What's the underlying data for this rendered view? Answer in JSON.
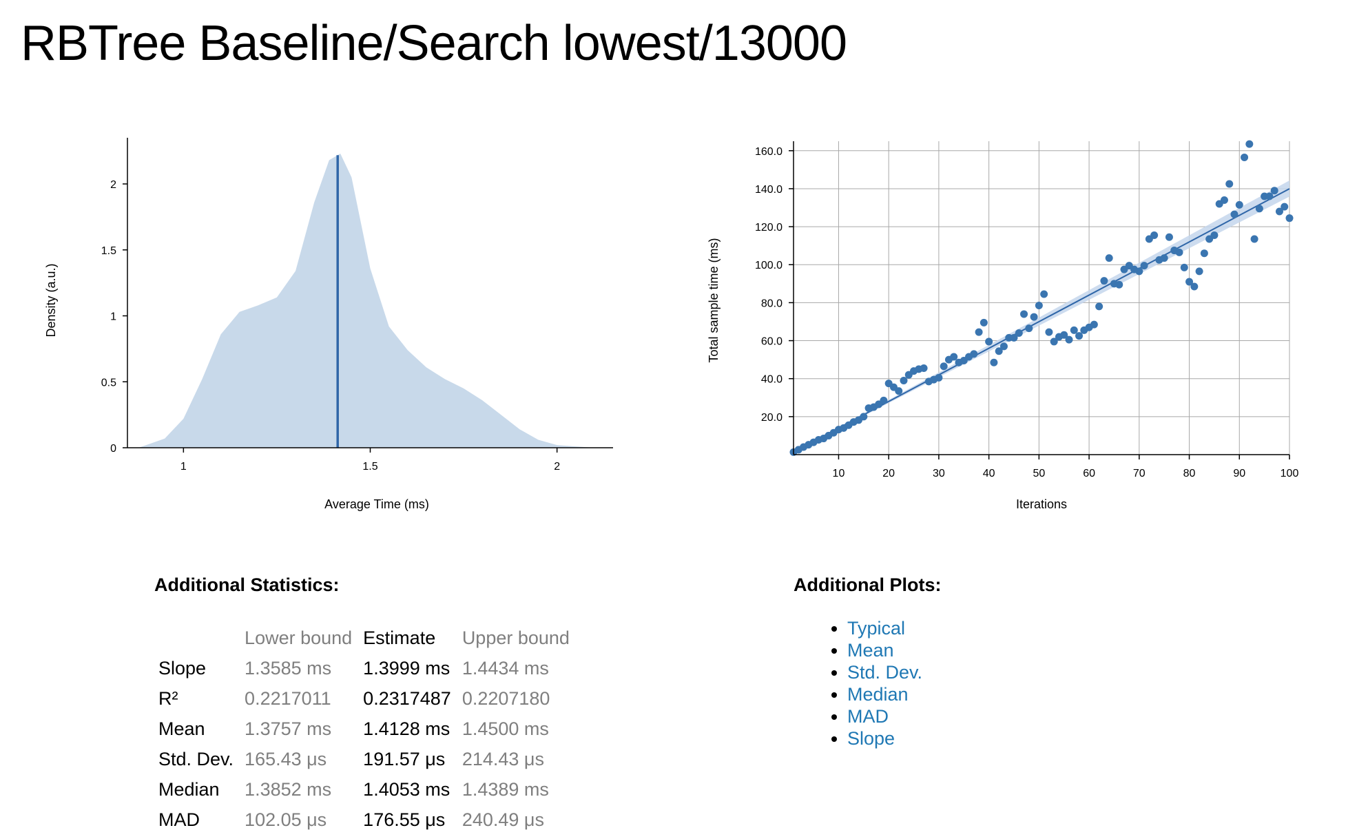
{
  "page": {
    "title": "RBTree Baseline/Search lowest/13000"
  },
  "colors": {
    "density_fill": "#c8d9ea",
    "accent_line": "#2f66a8",
    "point": "#3a75b0",
    "band": "#c4d6ec",
    "grid": "#a8a8a8",
    "bound_text": "#7f7f7f",
    "link": "#1f78b4"
  },
  "chart_data": [
    {
      "type": "area",
      "xlabel": "Average Time (ms)",
      "ylabel": "Density (a.u.)",
      "xlim": [
        0.85,
        2.15
      ],
      "ylim": [
        0,
        2.35
      ],
      "x_ticks": [
        "1",
        "1.5",
        "2"
      ],
      "y_ticks": [
        "0",
        "0.5",
        "1",
        "1.5",
        "2"
      ],
      "grid": false,
      "density_x": [
        0.88,
        0.95,
        1.0,
        1.05,
        1.1,
        1.15,
        1.2,
        1.25,
        1.3,
        1.35,
        1.39,
        1.42,
        1.45,
        1.5,
        1.55,
        1.6,
        1.65,
        1.7,
        1.75,
        1.8,
        1.85,
        1.9,
        1.95,
        2.0,
        2.05,
        2.1
      ],
      "density_y": [
        0.0,
        0.07,
        0.22,
        0.52,
        0.86,
        1.03,
        1.08,
        1.14,
        1.34,
        1.86,
        2.18,
        2.23,
        2.05,
        1.36,
        0.92,
        0.74,
        0.61,
        0.52,
        0.45,
        0.36,
        0.25,
        0.14,
        0.06,
        0.02,
        0.01,
        0.0
      ],
      "mean_line_x": 1.4128
    },
    {
      "type": "scatter",
      "xlabel": "Iterations",
      "ylabel": "Total sample time (ms)",
      "xlim": [
        1,
        100
      ],
      "ylim": [
        0,
        165
      ],
      "x_ticks": [
        "10",
        "20",
        "30",
        "40",
        "50",
        "60",
        "70",
        "80",
        "90",
        "100"
      ],
      "y_ticks": [
        "20.0",
        "40.0",
        "60.0",
        "80.0",
        "100.0",
        "120.0",
        "140.0",
        "160.0"
      ],
      "grid": true,
      "points": [
        [
          1,
          1.3
        ],
        [
          2,
          2.6
        ],
        [
          3,
          4.0
        ],
        [
          4,
          5.2
        ],
        [
          5,
          6.5
        ],
        [
          6,
          7.8
        ],
        [
          7,
          8.5
        ],
        [
          8,
          10.0
        ],
        [
          9,
          11.5
        ],
        [
          10,
          13.2
        ],
        [
          11,
          14.0
        ],
        [
          12,
          15.5
        ],
        [
          13,
          17.2
        ],
        [
          14,
          18.2
        ],
        [
          15,
          20.0
        ],
        [
          16,
          24.5
        ],
        [
          17,
          25.0
        ],
        [
          18,
          26.5
        ],
        [
          19,
          28.5
        ],
        [
          20,
          37.5
        ],
        [
          21,
          35.5
        ],
        [
          22,
          33.5
        ],
        [
          23,
          39.0
        ],
        [
          24,
          42.0
        ],
        [
          25,
          44.0
        ],
        [
          26,
          45.0
        ],
        [
          27,
          45.5
        ],
        [
          28,
          38.5
        ],
        [
          29,
          39.5
        ],
        [
          30,
          40.5
        ],
        [
          31,
          46.5
        ],
        [
          32,
          50.0
        ],
        [
          33,
          51.5
        ],
        [
          34,
          48.5
        ],
        [
          35,
          49.5
        ],
        [
          36,
          51.5
        ],
        [
          37,
          53.0
        ],
        [
          38,
          64.5
        ],
        [
          39,
          69.5
        ],
        [
          40,
          59.5
        ],
        [
          41,
          48.5
        ],
        [
          42,
          54.5
        ],
        [
          43,
          57.0
        ],
        [
          44,
          61.5
        ],
        [
          45,
          61.5
        ],
        [
          46,
          64.0
        ],
        [
          47,
          74.0
        ],
        [
          48,
          66.5
        ],
        [
          49,
          72.5
        ],
        [
          50,
          78.5
        ],
        [
          51,
          84.5
        ],
        [
          52,
          64.5
        ],
        [
          53,
          59.5
        ],
        [
          54,
          62.0
        ],
        [
          55,
          63.0
        ],
        [
          56,
          60.5
        ],
        [
          57,
          65.5
        ],
        [
          58,
          62.5
        ],
        [
          59,
          65.5
        ],
        [
          60,
          67.0
        ],
        [
          61,
          68.5
        ],
        [
          62,
          78.0
        ],
        [
          63,
          91.5
        ],
        [
          64,
          103.5
        ],
        [
          65,
          90.0
        ],
        [
          66,
          89.5
        ],
        [
          67,
          97.5
        ],
        [
          68,
          99.5
        ],
        [
          69,
          97.5
        ],
        [
          70,
          96.5
        ],
        [
          71,
          99.5
        ],
        [
          72,
          113.5
        ],
        [
          73,
          115.5
        ],
        [
          74,
          102.5
        ],
        [
          75,
          103.5
        ],
        [
          76,
          114.5
        ],
        [
          77,
          107.5
        ],
        [
          78,
          106.5
        ],
        [
          79,
          98.5
        ],
        [
          80,
          91.0
        ],
        [
          81,
          88.5
        ],
        [
          82,
          96.5
        ],
        [
          83,
          106.0
        ],
        [
          84,
          113.5
        ],
        [
          85,
          115.5
        ],
        [
          86,
          132.0
        ],
        [
          87,
          134.0
        ],
        [
          88,
          142.5
        ],
        [
          89,
          126.5
        ],
        [
          90,
          131.5
        ],
        [
          91,
          156.5
        ],
        [
          92,
          163.5
        ],
        [
          93,
          113.5
        ],
        [
          94,
          129.5
        ],
        [
          95,
          136.0
        ],
        [
          96,
          136.0
        ],
        [
          97,
          139.0
        ],
        [
          98,
          128.0
        ],
        [
          99,
          130.5
        ],
        [
          100,
          124.5
        ]
      ],
      "regression": {
        "slope": 1.3999,
        "lower": 1.3585,
        "upper": 1.4434
      }
    }
  ],
  "stats": {
    "heading": "Additional Statistics:",
    "columns": [
      "",
      "Lower bound",
      "Estimate",
      "Upper bound"
    ],
    "rows": [
      {
        "label": "Slope",
        "lower": "1.3585 ms",
        "estimate": "1.3999 ms",
        "upper": "1.4434 ms"
      },
      {
        "label": "R²",
        "lower": "0.2217011",
        "estimate": "0.2317487",
        "upper": "0.2207180"
      },
      {
        "label": "Mean",
        "lower": "1.3757 ms",
        "estimate": "1.4128 ms",
        "upper": "1.4500 ms"
      },
      {
        "label": "Std. Dev.",
        "lower": "165.43 μs",
        "estimate": "191.57 μs",
        "upper": "214.43 μs"
      },
      {
        "label": "Median",
        "lower": "1.3852 ms",
        "estimate": "1.4053 ms",
        "upper": "1.4389 ms"
      },
      {
        "label": "MAD",
        "lower": "102.05 μs",
        "estimate": "176.55 μs",
        "upper": "240.49 μs"
      }
    ]
  },
  "plots": {
    "heading": "Additional Plots:",
    "links": [
      "Typical",
      "Mean",
      "Std. Dev.",
      "Median",
      "MAD",
      "Slope"
    ]
  }
}
